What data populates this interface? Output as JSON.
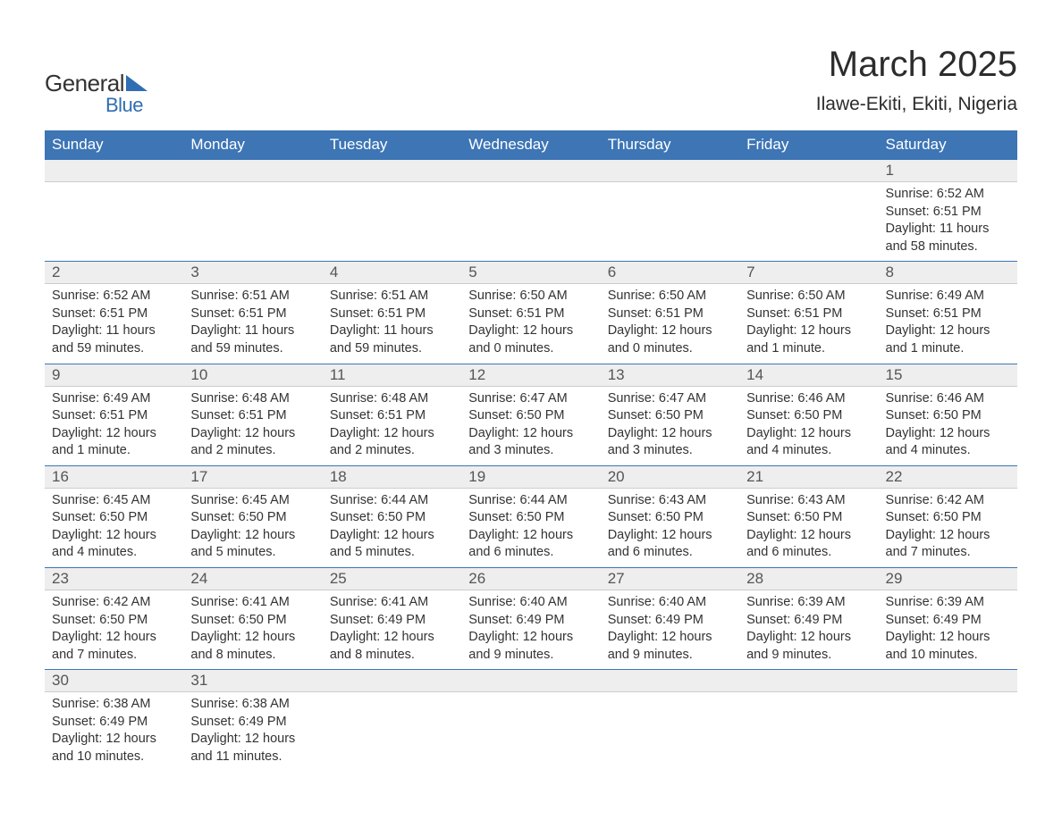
{
  "logo": {
    "text_general": "General",
    "text_blue": "Blue"
  },
  "title": "March 2025",
  "location": "Ilawe-Ekiti, Ekiti, Nigeria",
  "day_headers": [
    "Sunday",
    "Monday",
    "Tuesday",
    "Wednesday",
    "Thursday",
    "Friday",
    "Saturday"
  ],
  "colors": {
    "header_bg": "#3d75b5",
    "header_text": "#ffffff",
    "day_number_bg": "#eeeeee",
    "row_separator": "#3d75b5",
    "text_primary": "#333333",
    "text_muted": "#555555",
    "logo_blue": "#2f6eb3",
    "background": "#ffffff"
  },
  "weeks": [
    {
      "days": [
        {
          "num": "",
          "sunrise": "",
          "sunset": "",
          "daylight": ""
        },
        {
          "num": "",
          "sunrise": "",
          "sunset": "",
          "daylight": ""
        },
        {
          "num": "",
          "sunrise": "",
          "sunset": "",
          "daylight": ""
        },
        {
          "num": "",
          "sunrise": "",
          "sunset": "",
          "daylight": ""
        },
        {
          "num": "",
          "sunrise": "",
          "sunset": "",
          "daylight": ""
        },
        {
          "num": "",
          "sunrise": "",
          "sunset": "",
          "daylight": ""
        },
        {
          "num": "1",
          "sunrise": "Sunrise: 6:52 AM",
          "sunset": "Sunset: 6:51 PM",
          "daylight": "Daylight: 11 hours and 58 minutes."
        }
      ]
    },
    {
      "days": [
        {
          "num": "2",
          "sunrise": "Sunrise: 6:52 AM",
          "sunset": "Sunset: 6:51 PM",
          "daylight": "Daylight: 11 hours and 59 minutes."
        },
        {
          "num": "3",
          "sunrise": "Sunrise: 6:51 AM",
          "sunset": "Sunset: 6:51 PM",
          "daylight": "Daylight: 11 hours and 59 minutes."
        },
        {
          "num": "4",
          "sunrise": "Sunrise: 6:51 AM",
          "sunset": "Sunset: 6:51 PM",
          "daylight": "Daylight: 11 hours and 59 minutes."
        },
        {
          "num": "5",
          "sunrise": "Sunrise: 6:50 AM",
          "sunset": "Sunset: 6:51 PM",
          "daylight": "Daylight: 12 hours and 0 minutes."
        },
        {
          "num": "6",
          "sunrise": "Sunrise: 6:50 AM",
          "sunset": "Sunset: 6:51 PM",
          "daylight": "Daylight: 12 hours and 0 minutes."
        },
        {
          "num": "7",
          "sunrise": "Sunrise: 6:50 AM",
          "sunset": "Sunset: 6:51 PM",
          "daylight": "Daylight: 12 hours and 1 minute."
        },
        {
          "num": "8",
          "sunrise": "Sunrise: 6:49 AM",
          "sunset": "Sunset: 6:51 PM",
          "daylight": "Daylight: 12 hours and 1 minute."
        }
      ]
    },
    {
      "days": [
        {
          "num": "9",
          "sunrise": "Sunrise: 6:49 AM",
          "sunset": "Sunset: 6:51 PM",
          "daylight": "Daylight: 12 hours and 1 minute."
        },
        {
          "num": "10",
          "sunrise": "Sunrise: 6:48 AM",
          "sunset": "Sunset: 6:51 PM",
          "daylight": "Daylight: 12 hours and 2 minutes."
        },
        {
          "num": "11",
          "sunrise": "Sunrise: 6:48 AM",
          "sunset": "Sunset: 6:51 PM",
          "daylight": "Daylight: 12 hours and 2 minutes."
        },
        {
          "num": "12",
          "sunrise": "Sunrise: 6:47 AM",
          "sunset": "Sunset: 6:50 PM",
          "daylight": "Daylight: 12 hours and 3 minutes."
        },
        {
          "num": "13",
          "sunrise": "Sunrise: 6:47 AM",
          "sunset": "Sunset: 6:50 PM",
          "daylight": "Daylight: 12 hours and 3 minutes."
        },
        {
          "num": "14",
          "sunrise": "Sunrise: 6:46 AM",
          "sunset": "Sunset: 6:50 PM",
          "daylight": "Daylight: 12 hours and 4 minutes."
        },
        {
          "num": "15",
          "sunrise": "Sunrise: 6:46 AM",
          "sunset": "Sunset: 6:50 PM",
          "daylight": "Daylight: 12 hours and 4 minutes."
        }
      ]
    },
    {
      "days": [
        {
          "num": "16",
          "sunrise": "Sunrise: 6:45 AM",
          "sunset": "Sunset: 6:50 PM",
          "daylight": "Daylight: 12 hours and 4 minutes."
        },
        {
          "num": "17",
          "sunrise": "Sunrise: 6:45 AM",
          "sunset": "Sunset: 6:50 PM",
          "daylight": "Daylight: 12 hours and 5 minutes."
        },
        {
          "num": "18",
          "sunrise": "Sunrise: 6:44 AM",
          "sunset": "Sunset: 6:50 PM",
          "daylight": "Daylight: 12 hours and 5 minutes."
        },
        {
          "num": "19",
          "sunrise": "Sunrise: 6:44 AM",
          "sunset": "Sunset: 6:50 PM",
          "daylight": "Daylight: 12 hours and 6 minutes."
        },
        {
          "num": "20",
          "sunrise": "Sunrise: 6:43 AM",
          "sunset": "Sunset: 6:50 PM",
          "daylight": "Daylight: 12 hours and 6 minutes."
        },
        {
          "num": "21",
          "sunrise": "Sunrise: 6:43 AM",
          "sunset": "Sunset: 6:50 PM",
          "daylight": "Daylight: 12 hours and 6 minutes."
        },
        {
          "num": "22",
          "sunrise": "Sunrise: 6:42 AM",
          "sunset": "Sunset: 6:50 PM",
          "daylight": "Daylight: 12 hours and 7 minutes."
        }
      ]
    },
    {
      "days": [
        {
          "num": "23",
          "sunrise": "Sunrise: 6:42 AM",
          "sunset": "Sunset: 6:50 PM",
          "daylight": "Daylight: 12 hours and 7 minutes."
        },
        {
          "num": "24",
          "sunrise": "Sunrise: 6:41 AM",
          "sunset": "Sunset: 6:50 PM",
          "daylight": "Daylight: 12 hours and 8 minutes."
        },
        {
          "num": "25",
          "sunrise": "Sunrise: 6:41 AM",
          "sunset": "Sunset: 6:49 PM",
          "daylight": "Daylight: 12 hours and 8 minutes."
        },
        {
          "num": "26",
          "sunrise": "Sunrise: 6:40 AM",
          "sunset": "Sunset: 6:49 PM",
          "daylight": "Daylight: 12 hours and 9 minutes."
        },
        {
          "num": "27",
          "sunrise": "Sunrise: 6:40 AM",
          "sunset": "Sunset: 6:49 PM",
          "daylight": "Daylight: 12 hours and 9 minutes."
        },
        {
          "num": "28",
          "sunrise": "Sunrise: 6:39 AM",
          "sunset": "Sunset: 6:49 PM",
          "daylight": "Daylight: 12 hours and 9 minutes."
        },
        {
          "num": "29",
          "sunrise": "Sunrise: 6:39 AM",
          "sunset": "Sunset: 6:49 PM",
          "daylight": "Daylight: 12 hours and 10 minutes."
        }
      ]
    },
    {
      "days": [
        {
          "num": "30",
          "sunrise": "Sunrise: 6:38 AM",
          "sunset": "Sunset: 6:49 PM",
          "daylight": "Daylight: 12 hours and 10 minutes."
        },
        {
          "num": "31",
          "sunrise": "Sunrise: 6:38 AM",
          "sunset": "Sunset: 6:49 PM",
          "daylight": "Daylight: 12 hours and 11 minutes."
        },
        {
          "num": "",
          "sunrise": "",
          "sunset": "",
          "daylight": ""
        },
        {
          "num": "",
          "sunrise": "",
          "sunset": "",
          "daylight": ""
        },
        {
          "num": "",
          "sunrise": "",
          "sunset": "",
          "daylight": ""
        },
        {
          "num": "",
          "sunrise": "",
          "sunset": "",
          "daylight": ""
        },
        {
          "num": "",
          "sunrise": "",
          "sunset": "",
          "daylight": ""
        }
      ]
    }
  ]
}
